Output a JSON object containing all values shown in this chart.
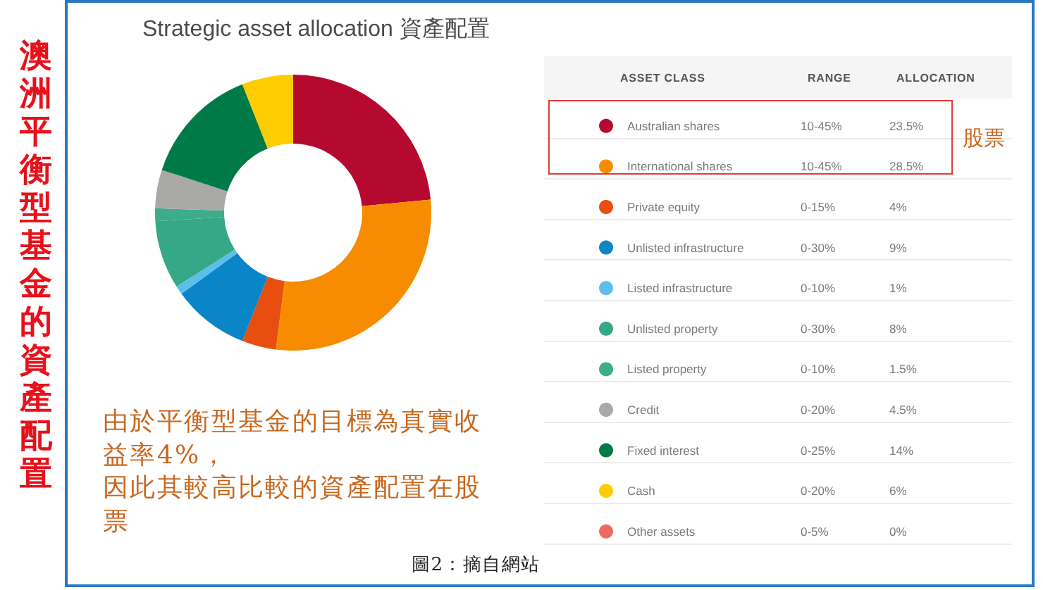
{
  "chart_data": {
    "type": "donut",
    "title": "Strategic asset allocation 資產配置",
    "categories": [
      "Australian shares",
      "International shares",
      "Private equity",
      "Unlisted infrastructure",
      "Listed infrastructure",
      "Unlisted property",
      "Listed property",
      "Credit",
      "Fixed interest",
      "Cash",
      "Other assets"
    ],
    "values": [
      23.5,
      28.5,
      4,
      9,
      1,
      8,
      1.5,
      4.5,
      14,
      6,
      0
    ],
    "colors": [
      "#b5092f",
      "#f78c00",
      "#e84e0f",
      "#0a85c8",
      "#5bbfea",
      "#35a887",
      "#3dac8c",
      "#a9a9a6",
      "#007a46",
      "#ffcc00",
      "#ee6a60"
    ],
    "value_labels": [
      "23.5%",
      "28.5%",
      "4%",
      "9%",
      "1%",
      "8%",
      "1.5%",
      "4.5%",
      "14%",
      "6%",
      "0%"
    ],
    "legend": "right",
    "annotations": [
      "澳洲平衡型基金的資產配置",
      "ASSET CLASS",
      "RANGE",
      "ALLOCATION",
      "10-45%",
      "10-45%",
      "0-15%",
      "0-30%",
      "0-10%",
      "0-30%",
      "0-10%",
      "0-20%",
      "0-25%",
      "0-20%",
      "0-5%",
      "股票",
      "由於平衡型基金的目標為真實收益率4%，",
      "因此其較高比較的資產配置在股票",
      "圖2：摘自網站"
    ]
  }
}
